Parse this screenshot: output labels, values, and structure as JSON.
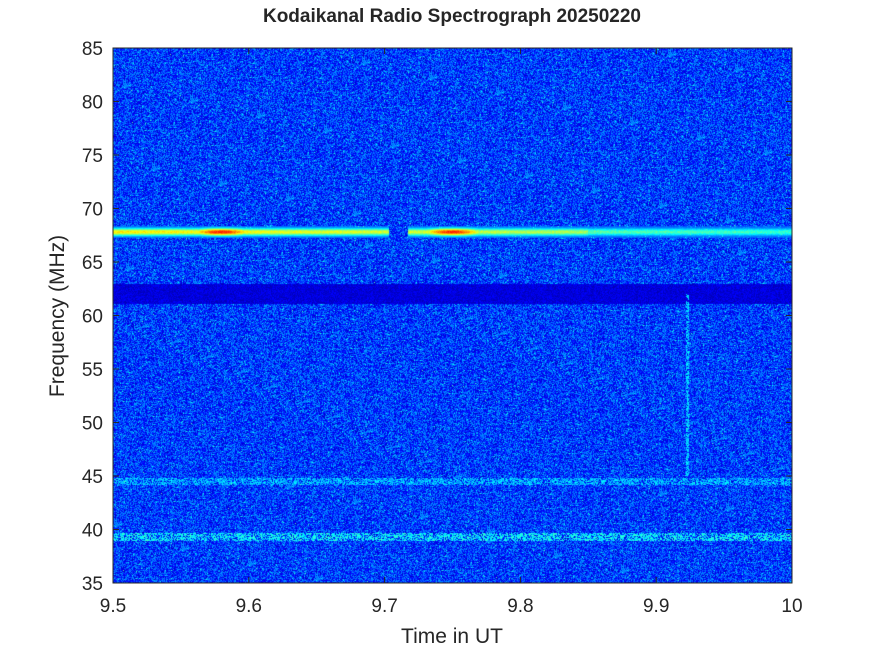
{
  "chart_data": {
    "type": "heatmap",
    "title": "Kodaikanal Radio Spectrograph  20250220",
    "xlabel": "Time in UT",
    "ylabel": "Frequency (MHz)",
    "xlim": [
      9.5,
      10
    ],
    "ylim": [
      35,
      85
    ],
    "x_ticks": [
      9.5,
      9.6,
      9.7,
      9.8,
      9.9,
      10
    ],
    "x_tick_labels": [
      "9.5",
      "9.6",
      "9.7",
      "9.8",
      "9.9",
      "10"
    ],
    "y_ticks": [
      35,
      40,
      45,
      50,
      55,
      60,
      65,
      70,
      75,
      80,
      85
    ],
    "y_tick_labels": [
      "35",
      "40",
      "45",
      "50",
      "55",
      "60",
      "65",
      "70",
      "75",
      "80",
      "85"
    ],
    "colormap": "jet",
    "background_level": 0.18,
    "features": [
      {
        "name": "bright-band",
        "freq_mhz": 67.8,
        "t_start": 9.5,
        "t_end": 10,
        "gaps": [
          [
            9.703,
            9.717
          ]
        ],
        "peak_level": 0.85,
        "peak_times": [
          9.58,
          9.75
        ]
      },
      {
        "name": "dark-band",
        "freq_mhz": 62.0,
        "t_start": 9.5,
        "t_end": 10,
        "level": 0.05
      },
      {
        "name": "weak-band",
        "freq_mhz": 39.3,
        "t_start": 9.5,
        "t_end": 10,
        "level": 0.32
      },
      {
        "name": "weak-band",
        "freq_mhz": 44.5,
        "t_start": 9.5,
        "t_end": 10,
        "level": 0.26
      },
      {
        "name": "vertical-streak",
        "time_ut": 9.923,
        "f_start": 45,
        "f_end": 62,
        "level": 0.3
      }
    ]
  },
  "colors": {
    "axis": "#262626",
    "background_blue": "#0a2fc0"
  }
}
